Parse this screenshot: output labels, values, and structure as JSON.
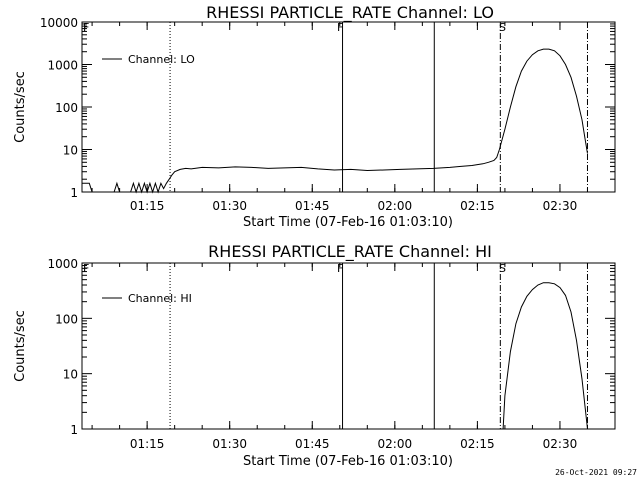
{
  "chart_data": [
    {
      "type": "line",
      "title": "RHESSI PARTICLE_RATE Channel: LO",
      "xlabel": "Start Time (07-Feb-16 01:03:10)",
      "ylabel": "Counts/sec",
      "yscale": "log",
      "ylim": [
        1,
        10000
      ],
      "xlim": [
        "01:03:10",
        "02:40:00"
      ],
      "x_ticks": [
        "01:15",
        "01:30",
        "01:45",
        "02:00",
        "02:15",
        "02:30"
      ],
      "y_ticks": [
        "1",
        "10",
        "100",
        "1000",
        "10000"
      ],
      "legend": {
        "entries": [
          "Channel: LO"
        ],
        "position": "top-left"
      },
      "flag_labels": [
        "F",
        "F",
        "S"
      ],
      "markers": [
        {
          "time": "01:19:10",
          "style": "dotted"
        },
        {
          "time": "01:50:30",
          "style": "solid"
        },
        {
          "time": "02:07:10",
          "style": "solid"
        },
        {
          "time": "02:19:10",
          "style": "dash-dot"
        },
        {
          "time": "02:35:00",
          "style": "dash-dot"
        }
      ],
      "series": [
        {
          "name": "Channel: LO",
          "x": [
            "01:03:10",
            "01:04:30",
            "01:05:00",
            "01:09:00",
            "01:09:30",
            "01:10:00",
            "01:12:00",
            "01:12:30",
            "01:13:00",
            "01:13:30",
            "01:14:00",
            "01:14:30",
            "01:15:00",
            "01:15:30",
            "01:16:00",
            "01:16:30",
            "01:17:00",
            "01:17:30",
            "01:18:00",
            "01:18:30",
            "01:19:00",
            "01:19:30",
            "01:20:00",
            "01:21:00",
            "01:22:00",
            "01:23:00",
            "01:25:00",
            "01:28:00",
            "01:31:00",
            "01:34:00",
            "01:37:00",
            "01:40:00",
            "01:43:00",
            "01:46:00",
            "01:49:00",
            "01:52:00",
            "01:55:00",
            "01:58:00",
            "02:01:00",
            "02:04:00",
            "02:07:00",
            "02:10:00",
            "02:12:00",
            "02:14:00",
            "02:16:00",
            "02:17:00",
            "02:18:00",
            "02:18:30",
            "02:19:00",
            "02:20:00",
            "02:21:00",
            "02:22:00",
            "02:23:00",
            "02:24:00",
            "02:25:00",
            "02:26:00",
            "02:27:00",
            "02:28:00",
            "02:29:00",
            "02:30:00",
            "02:31:00",
            "02:32:00",
            "02:33:00",
            "02:34:00",
            "02:34:30",
            "02:35:00"
          ],
          "y": [
            1.6,
            1.6,
            1,
            1,
            1.6,
            1,
            1,
            1.6,
            1,
            1.6,
            1,
            1.6,
            1,
            1.6,
            1,
            1.6,
            1,
            1.6,
            1.2,
            1.6,
            2,
            2.5,
            3,
            3.4,
            3.6,
            3.5,
            3.8,
            3.7,
            3.9,
            3.8,
            3.6,
            3.7,
            3.8,
            3.5,
            3.3,
            3.4,
            3.2,
            3.3,
            3.4,
            3.5,
            3.6,
            3.8,
            4,
            4.2,
            4.6,
            5,
            5.5,
            6.5,
            10,
            30,
            100,
            300,
            700,
            1200,
            1700,
            2100,
            2300,
            2300,
            2100,
            1600,
            1000,
            500,
            180,
            50,
            20,
            8
          ]
        }
      ]
    },
    {
      "type": "line",
      "title": "RHESSI PARTICLE_RATE Channel: HI",
      "xlabel": "Start Time (07-Feb-16 01:03:10)",
      "ylabel": "Counts/sec",
      "yscale": "log",
      "ylim": [
        1,
        1000
      ],
      "xlim": [
        "01:03:10",
        "02:40:00"
      ],
      "x_ticks": [
        "01:15",
        "01:30",
        "01:45",
        "02:00",
        "02:15",
        "02:30"
      ],
      "y_ticks": [
        "1",
        "10",
        "100",
        "1000"
      ],
      "legend": {
        "entries": [
          "Channel: HI"
        ],
        "position": "top-left"
      },
      "flag_labels": [
        "F",
        "F",
        "S"
      ],
      "markers": [
        {
          "time": "01:19:10",
          "style": "dotted"
        },
        {
          "time": "01:50:30",
          "style": "solid"
        },
        {
          "time": "02:07:10",
          "style": "solid"
        },
        {
          "time": "02:19:10",
          "style": "dash-dot"
        },
        {
          "time": "02:35:00",
          "style": "dash-dot"
        }
      ],
      "series": [
        {
          "name": "Channel: HI",
          "x": [
            "02:19:40",
            "02:20:00",
            "02:21:00",
            "02:22:00",
            "02:23:00",
            "02:24:00",
            "02:25:00",
            "02:26:00",
            "02:27:00",
            "02:28:00",
            "02:29:00",
            "02:30:00",
            "02:31:00",
            "02:32:00",
            "02:33:00",
            "02:34:00",
            "02:35:00"
          ],
          "y": [
            1,
            4,
            25,
            80,
            160,
            250,
            330,
            400,
            440,
            440,
            420,
            360,
            260,
            130,
            40,
            8,
            1
          ]
        }
      ]
    }
  ],
  "timestamp": "26-Oct-2021 09:27"
}
